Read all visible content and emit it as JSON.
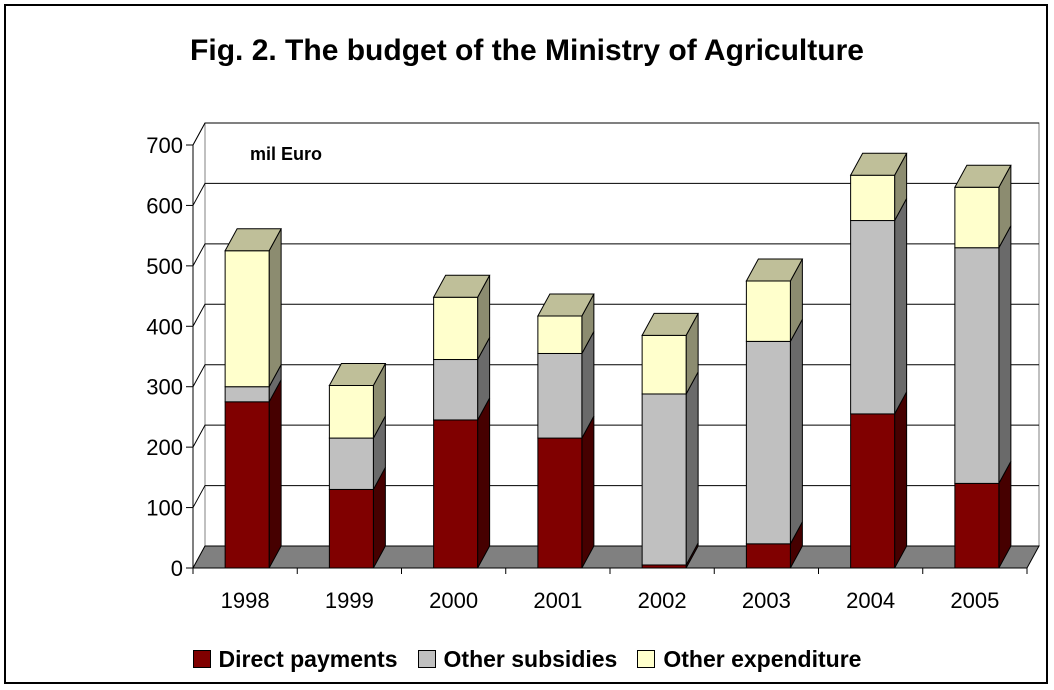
{
  "chart_data": {
    "type": "bar",
    "stacked": true,
    "title": "Fig. 2. The budget of the Ministry of Agriculture",
    "unit_label": "mil Euro",
    "categories": [
      "1998",
      "1999",
      "2000",
      "2001",
      "2002",
      "2003",
      "2004",
      "2005"
    ],
    "series": [
      {
        "name": "Direct payments",
        "color": "#800000",
        "values": [
          275,
          130,
          245,
          215,
          5,
          40,
          255,
          140
        ]
      },
      {
        "name": "Other subsidies",
        "color": "#C0C0C0",
        "values": [
          25,
          85,
          100,
          140,
          283,
          335,
          320,
          390
        ]
      },
      {
        "name": "Other expenditure",
        "color": "#FFFFCC",
        "values": [
          225,
          87,
          103,
          62,
          97,
          100,
          75,
          100
        ]
      }
    ],
    "y_ticks": [
      "0",
      "100",
      "200",
      "300",
      "400",
      "500",
      "600",
      "700"
    ],
    "ylim": [
      0,
      700
    ],
    "grid": true,
    "legend_position": "bottom",
    "floor_color": "#808080"
  }
}
